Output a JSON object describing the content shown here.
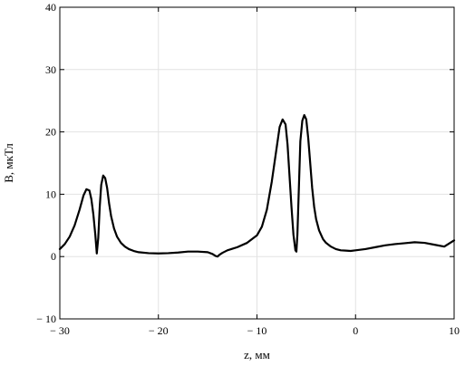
{
  "chart_data": {
    "type": "line",
    "title": "",
    "xlabel": "z, мм",
    "ylabel": "B, мкТл",
    "xlim": [
      -30,
      10
    ],
    "ylim": [
      -10,
      40
    ],
    "xticks": [
      -30,
      -20,
      -10,
      0,
      10
    ],
    "yticks": [
      -10,
      0,
      10,
      20,
      30,
      40
    ],
    "xtick_labels": [
      "− 30",
      "− 20",
      "− 10",
      "0",
      "10"
    ],
    "ytick_labels": [
      "− 10",
      "0",
      "10",
      "20",
      "30",
      "40"
    ],
    "grid": true,
    "series": [
      {
        "color": "#000000",
        "x": [
          -30,
          -29.5,
          -29,
          -28.5,
          -28,
          -27.6,
          -27.3,
          -27.0,
          -26.8,
          -26.6,
          -26.4,
          -26.25,
          -26.1,
          -25.95,
          -25.8,
          -25.6,
          -25.4,
          -25.2,
          -25.0,
          -24.8,
          -24.5,
          -24.2,
          -23.8,
          -23.4,
          -23.0,
          -22.5,
          -22.0,
          -21.0,
          -20.0,
          -19.0,
          -18.0,
          -17.0,
          -16.0,
          -15.0,
          -14.5,
          -14.2,
          -14.0,
          -13.8,
          -13.5,
          -13.0,
          -12.0,
          -11.0,
          -10.0,
          -9.5,
          -9.0,
          -8.5,
          -8.0,
          -7.7,
          -7.4,
          -7.1,
          -6.9,
          -6.7,
          -6.5,
          -6.3,
          -6.1,
          -6.0,
          -5.9,
          -5.75,
          -5.6,
          -5.4,
          -5.2,
          -5.0,
          -4.8,
          -4.6,
          -4.4,
          -4.2,
          -4.0,
          -3.7,
          -3.3,
          -3.0,
          -2.5,
          -2.0,
          -1.5,
          -1.0,
          -0.5,
          0.0,
          1.0,
          2.0,
          3.0,
          4.0,
          5.0,
          6.0,
          7.0,
          8.0,
          9.0,
          10.0
        ],
        "y": [
          1.2,
          2.0,
          3.2,
          5.0,
          7.5,
          9.8,
          10.8,
          10.6,
          9.2,
          6.8,
          3.5,
          0.5,
          3.0,
          8.0,
          11.5,
          13.0,
          12.6,
          11.0,
          8.5,
          6.5,
          4.5,
          3.2,
          2.2,
          1.6,
          1.2,
          0.9,
          0.7,
          0.55,
          0.5,
          0.55,
          0.65,
          0.8,
          0.8,
          0.7,
          0.4,
          0.1,
          0.0,
          0.3,
          0.6,
          1.0,
          1.5,
          2.2,
          3.4,
          4.8,
          7.5,
          12.0,
          17.5,
          20.8,
          22.0,
          21.2,
          18.0,
          13.0,
          8.0,
          3.5,
          1.0,
          0.8,
          3.5,
          11.0,
          18.5,
          21.8,
          22.7,
          22.0,
          19.0,
          15.0,
          11.0,
          8.0,
          6.0,
          4.2,
          2.8,
          2.2,
          1.6,
          1.2,
          1.0,
          0.95,
          0.9,
          1.0,
          1.2,
          1.5,
          1.8,
          2.0,
          2.15,
          2.3,
          2.2,
          1.9,
          1.6,
          2.6
        ]
      }
    ]
  }
}
